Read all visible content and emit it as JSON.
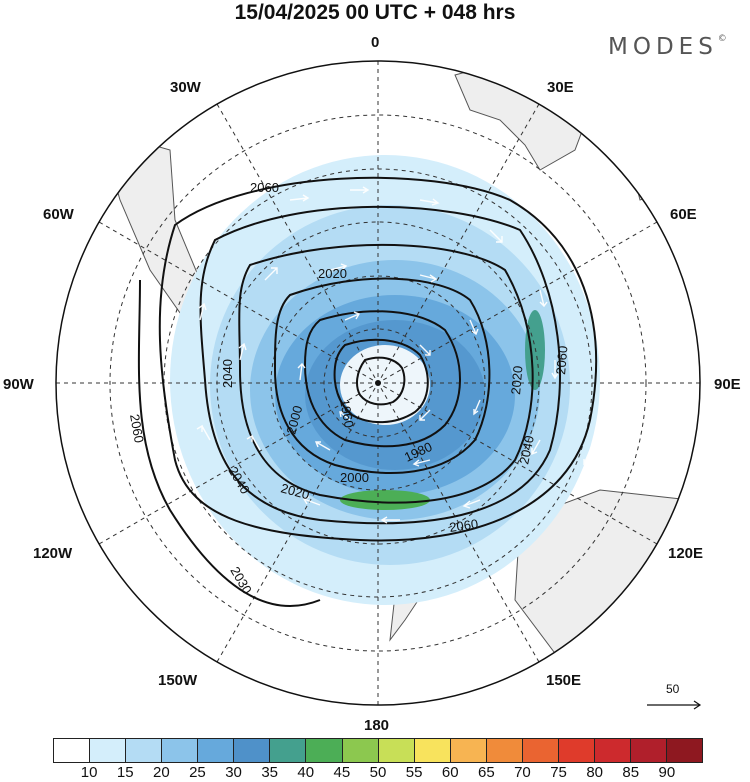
{
  "title": "15/04/2025  00 UTC  + 048 hrs",
  "brand": "MODES",
  "brand_mark": "©",
  "longitude_labels": {
    "lon_0": "0",
    "lon_30e": "30E",
    "lon_60e": "60E",
    "lon_90e": "90E",
    "lon_120e": "120E",
    "lon_150e": "150E",
    "lon_180": "180",
    "lon_150w": "150W",
    "lon_120w": "120W",
    "lon_90w": "90W",
    "lon_60w": "60W",
    "lon_30w": "30W"
  },
  "contour_labels": [
    "2060",
    "2020",
    "2040",
    "2060",
    "2000",
    "1960",
    "1980",
    "2000",
    "2020",
    "2040",
    "2060",
    "2040",
    "2060",
    "2020",
    "2030"
  ],
  "wind_scale": {
    "value": "50"
  },
  "colorbar": {
    "colors": [
      "#ffffff",
      "#d4eefb",
      "#b4dcf4",
      "#8cc4ea",
      "#66a9dc",
      "#4f91c9",
      "#44a08e",
      "#4cae56",
      "#8cc84f",
      "#c8df57",
      "#f8e35d",
      "#f7b452",
      "#f08b3a",
      "#ea6431",
      "#df3b2b",
      "#cd2a2d",
      "#b01f2b",
      "#8e1820"
    ],
    "ticks": [
      "10",
      "15",
      "20",
      "25",
      "30",
      "35",
      "40",
      "45",
      "50",
      "55",
      "60",
      "65",
      "70",
      "75",
      "80",
      "85",
      "90"
    ]
  }
}
